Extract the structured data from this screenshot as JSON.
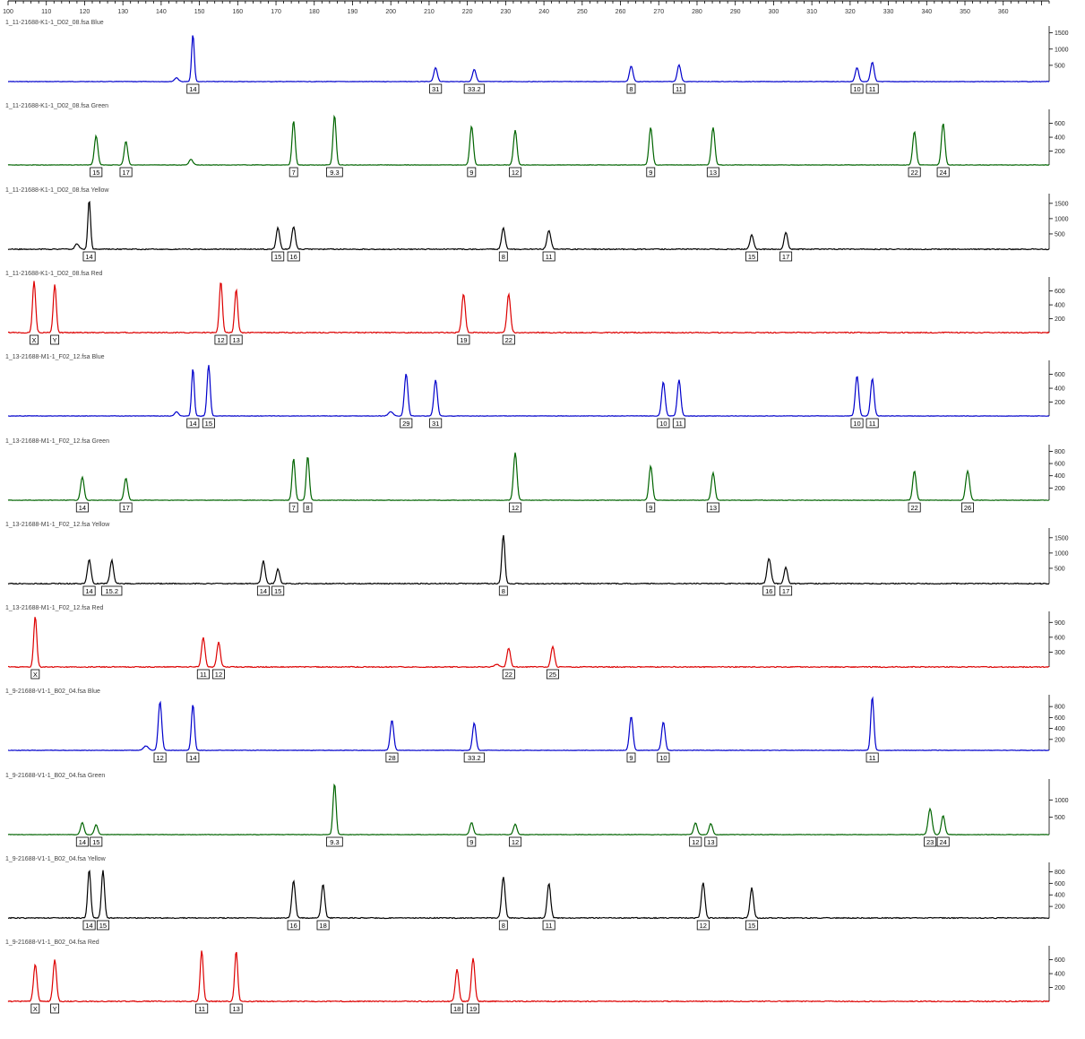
{
  "ruler": {
    "ticks": [
      "100",
      "110",
      "120",
      "130",
      "140",
      "150",
      "160",
      "170",
      "180",
      "190",
      "200",
      "210",
      "220",
      "230",
      "240",
      "250",
      "260",
      "270",
      "280",
      "290",
      "300",
      "310",
      "320",
      "330",
      "340",
      "350",
      "360"
    ],
    "x_min": 100,
    "x_max": 372
  },
  "colors": {
    "blue": "#0000cc",
    "green": "#006400",
    "black": "#000000",
    "red": "#dd0000"
  },
  "panels": [
    {
      "title": "1_11-21688-K1-1_D02_08.fsa Blue",
      "color": "blue",
      "ymax": 1600,
      "yticks": [
        "1500",
        "1000",
        "500"
      ],
      "peaks": [
        {
          "x": 144,
          "h": 120,
          "w": 0.5
        },
        {
          "x": 148.3,
          "h": 1450,
          "w": 0.35
        },
        {
          "x": 211.7,
          "h": 430,
          "w": 0.45
        },
        {
          "x": 221.8,
          "h": 380,
          "w": 0.45
        },
        {
          "x": 262.8,
          "h": 480,
          "w": 0.45
        },
        {
          "x": 275.3,
          "h": 520,
          "w": 0.45
        },
        {
          "x": 321.8,
          "h": 430,
          "w": 0.45
        },
        {
          "x": 325.8,
          "h": 600,
          "w": 0.45
        }
      ],
      "labels": [
        {
          "x": 148.3,
          "t": "14"
        },
        {
          "x": 211.7,
          "t": "31"
        },
        {
          "x": 221.8,
          "t": "33.2"
        },
        {
          "x": 262.8,
          "t": "8"
        },
        {
          "x": 275.3,
          "t": "11"
        },
        {
          "x": 321.8,
          "t": "10"
        },
        {
          "x": 325.8,
          "t": "11"
        }
      ]
    },
    {
      "title": "1_11-21688-K1-1_D02_08.fsa Green",
      "color": "green",
      "ymax": 750,
      "yticks": [
        "600",
        "400",
        "200"
      ],
      "peaks": [
        {
          "x": 123,
          "h": 420,
          "w": 0.45
        },
        {
          "x": 130.8,
          "h": 340,
          "w": 0.45
        },
        {
          "x": 147.8,
          "h": 80,
          "w": 0.5
        },
        {
          "x": 174.6,
          "h": 640,
          "w": 0.4
        },
        {
          "x": 185.3,
          "h": 720,
          "w": 0.4
        },
        {
          "x": 221.1,
          "h": 560,
          "w": 0.45
        },
        {
          "x": 232.5,
          "h": 500,
          "w": 0.45
        },
        {
          "x": 267.9,
          "h": 540,
          "w": 0.45
        },
        {
          "x": 284.2,
          "h": 540,
          "w": 0.45
        },
        {
          "x": 336.8,
          "h": 480,
          "w": 0.45
        },
        {
          "x": 344.3,
          "h": 600,
          "w": 0.45
        }
      ],
      "labels": [
        {
          "x": 123,
          "t": "15"
        },
        {
          "x": 130.8,
          "t": "17"
        },
        {
          "x": 174.6,
          "t": "7"
        },
        {
          "x": 185.3,
          "t": "9.3"
        },
        {
          "x": 221.1,
          "t": "9"
        },
        {
          "x": 232.5,
          "t": "12"
        },
        {
          "x": 267.9,
          "t": "9"
        },
        {
          "x": 284.2,
          "t": "13"
        },
        {
          "x": 336.8,
          "t": "22"
        },
        {
          "x": 344.3,
          "t": "24"
        }
      ]
    },
    {
      "title": "1_11-21688-K1-1_D02_08.fsa Yellow",
      "color": "black",
      "ymax": 1700,
      "yticks": [
        "1500",
        "1000",
        "500"
      ],
      "peaks": [
        {
          "x": 118,
          "h": 180,
          "w": 0.5
        },
        {
          "x": 121.2,
          "h": 1620,
          "w": 0.35
        },
        {
          "x": 170.5,
          "h": 700,
          "w": 0.45
        },
        {
          "x": 174.6,
          "h": 740,
          "w": 0.45
        },
        {
          "x": 229.4,
          "h": 700,
          "w": 0.45
        },
        {
          "x": 241.3,
          "h": 600,
          "w": 0.5
        },
        {
          "x": 294.3,
          "h": 480,
          "w": 0.45
        },
        {
          "x": 303.2,
          "h": 560,
          "w": 0.45
        }
      ],
      "labels": [
        {
          "x": 121.2,
          "t": "14"
        },
        {
          "x": 170.5,
          "t": "15"
        },
        {
          "x": 174.6,
          "t": "16"
        },
        {
          "x": 229.4,
          "t": "8"
        },
        {
          "x": 241.3,
          "t": "11"
        },
        {
          "x": 294.3,
          "t": "15"
        },
        {
          "x": 303.2,
          "t": "17"
        }
      ]
    },
    {
      "title": "1_11-21688-K1-1_D02_08.fsa Red",
      "color": "red",
      "ymax": 750,
      "yticks": [
        "600",
        "400",
        "200"
      ],
      "peaks": [
        {
          "x": 106.8,
          "h": 740,
          "w": 0.4
        },
        {
          "x": 112.2,
          "h": 690,
          "w": 0.4
        },
        {
          "x": 155.6,
          "h": 740,
          "w": 0.4
        },
        {
          "x": 159.6,
          "h": 620,
          "w": 0.4
        },
        {
          "x": 219,
          "h": 560,
          "w": 0.45
        },
        {
          "x": 230.8,
          "h": 560,
          "w": 0.45
        }
      ],
      "labels": [
        {
          "x": 106.8,
          "t": "X"
        },
        {
          "x": 112.2,
          "t": "Y"
        },
        {
          "x": 155.6,
          "t": "12"
        },
        {
          "x": 159.6,
          "t": "13"
        },
        {
          "x": 219,
          "t": "19"
        },
        {
          "x": 230.8,
          "t": "22"
        }
      ]
    },
    {
      "title": "1_13-21688-M1-1_F02_12.fsa Blue",
      "color": "blue",
      "ymax": 750,
      "yticks": [
        "600",
        "400",
        "200"
      ],
      "peaks": [
        {
          "x": 144,
          "h": 60,
          "w": 0.5
        },
        {
          "x": 148.3,
          "h": 690,
          "w": 0.35
        },
        {
          "x": 152.4,
          "h": 740,
          "w": 0.4
        },
        {
          "x": 200,
          "h": 60,
          "w": 0.6
        },
        {
          "x": 204,
          "h": 610,
          "w": 0.45
        },
        {
          "x": 211.7,
          "h": 520,
          "w": 0.45
        },
        {
          "x": 271.2,
          "h": 490,
          "w": 0.45
        },
        {
          "x": 275.3,
          "h": 520,
          "w": 0.45
        },
        {
          "x": 321.8,
          "h": 580,
          "w": 0.45
        },
        {
          "x": 325.8,
          "h": 540,
          "w": 0.45
        }
      ],
      "labels": [
        {
          "x": 148.3,
          "t": "14"
        },
        {
          "x": 152.4,
          "t": "15"
        },
        {
          "x": 204,
          "t": "29"
        },
        {
          "x": 211.7,
          "t": "31"
        },
        {
          "x": 271.2,
          "t": "10"
        },
        {
          "x": 275.3,
          "t": "11"
        },
        {
          "x": 321.8,
          "t": "10"
        },
        {
          "x": 325.8,
          "t": "11"
        }
      ]
    },
    {
      "title": "1_13-21688-M1-1_F02_12.fsa Green",
      "color": "green",
      "ymax": 850,
      "yticks": [
        "800",
        "600",
        "400",
        "200"
      ],
      "peaks": [
        {
          "x": 119.4,
          "h": 380,
          "w": 0.45
        },
        {
          "x": 130.8,
          "h": 360,
          "w": 0.45
        },
        {
          "x": 174.6,
          "h": 680,
          "w": 0.4
        },
        {
          "x": 178.3,
          "h": 720,
          "w": 0.4
        },
        {
          "x": 232.5,
          "h": 780,
          "w": 0.45
        },
        {
          "x": 267.9,
          "h": 560,
          "w": 0.45
        },
        {
          "x": 284.2,
          "h": 450,
          "w": 0.45
        },
        {
          "x": 336.8,
          "h": 480,
          "w": 0.45
        },
        {
          "x": 350.7,
          "h": 480,
          "w": 0.5
        }
      ],
      "labels": [
        {
          "x": 119.4,
          "t": "14"
        },
        {
          "x": 130.8,
          "t": "17"
        },
        {
          "x": 174.6,
          "t": "7"
        },
        {
          "x": 178.3,
          "t": "8"
        },
        {
          "x": 232.5,
          "t": "12"
        },
        {
          "x": 267.9,
          "t": "9"
        },
        {
          "x": 284.2,
          "t": "13"
        },
        {
          "x": 336.8,
          "t": "22"
        },
        {
          "x": 350.7,
          "t": "26"
        }
      ]
    },
    {
      "title": "1_13-21688-M1-1_F02_12.fsa Yellow",
      "color": "black",
      "ymax": 1700,
      "yticks": [
        "1500",
        "1000",
        "500"
      ],
      "peaks": [
        {
          "x": 121.2,
          "h": 800,
          "w": 0.45
        },
        {
          "x": 127.1,
          "h": 760,
          "w": 0.45
        },
        {
          "x": 166.7,
          "h": 740,
          "w": 0.45
        },
        {
          "x": 170.5,
          "h": 470,
          "w": 0.45
        },
        {
          "x": 229.4,
          "h": 1600,
          "w": 0.4
        },
        {
          "x": 298.8,
          "h": 830,
          "w": 0.5
        },
        {
          "x": 303.2,
          "h": 530,
          "w": 0.45
        }
      ],
      "labels": [
        {
          "x": 121.2,
          "t": "14"
        },
        {
          "x": 127.1,
          "t": "15.2"
        },
        {
          "x": 166.7,
          "t": "14"
        },
        {
          "x": 170.5,
          "t": "15"
        },
        {
          "x": 229.4,
          "t": "8"
        },
        {
          "x": 298.8,
          "t": "16"
        },
        {
          "x": 303.2,
          "t": "17"
        }
      ]
    },
    {
      "title": "1_13-21688-M1-1_F02_12.fsa Red",
      "color": "red",
      "ymax": 1050,
      "yticks": [
        "900",
        "600",
        "300"
      ],
      "peaks": [
        {
          "x": 107.1,
          "h": 1030,
          "w": 0.4
        },
        {
          "x": 151,
          "h": 600,
          "w": 0.45
        },
        {
          "x": 155,
          "h": 500,
          "w": 0.45
        },
        {
          "x": 227.6,
          "h": 60,
          "w": 0.6
        },
        {
          "x": 230.8,
          "h": 380,
          "w": 0.45
        },
        {
          "x": 242.3,
          "h": 420,
          "w": 0.45
        }
      ],
      "labels": [
        {
          "x": 107.1,
          "t": "X"
        },
        {
          "x": 151,
          "t": "11"
        },
        {
          "x": 155,
          "t": "12"
        },
        {
          "x": 230.8,
          "t": "22"
        },
        {
          "x": 242.3,
          "t": "25"
        }
      ]
    },
    {
      "title": "1_9-21688-V1-1_B02_04.fsa  Blue",
      "color": "blue",
      "ymax": 950,
      "yticks": [
        "800",
        "600",
        "400",
        "200"
      ],
      "peaks": [
        {
          "x": 136,
          "h": 80,
          "w": 0.6
        },
        {
          "x": 139.7,
          "h": 890,
          "w": 0.45
        },
        {
          "x": 148.3,
          "h": 840,
          "w": 0.4
        },
        {
          "x": 200.3,
          "h": 550,
          "w": 0.45
        },
        {
          "x": 221.8,
          "h": 500,
          "w": 0.45
        },
        {
          "x": 262.8,
          "h": 620,
          "w": 0.45
        },
        {
          "x": 271.2,
          "h": 520,
          "w": 0.45
        },
        {
          "x": 325.8,
          "h": 980,
          "w": 0.4
        }
      ],
      "labels": [
        {
          "x": 139.7,
          "t": "12"
        },
        {
          "x": 148.3,
          "t": "14"
        },
        {
          "x": 200.3,
          "t": "28"
        },
        {
          "x": 221.8,
          "t": "33.2"
        },
        {
          "x": 262.8,
          "t": "9"
        },
        {
          "x": 271.2,
          "t": "10"
        },
        {
          "x": 325.8,
          "t": "11"
        }
      ]
    },
    {
      "title": "1_9-21688-V1-1_B02_04.fsa  Green",
      "color": "green",
      "ymax": 1500,
      "yticks": [
        "1000",
        "500"
      ],
      "peaks": [
        {
          "x": 119.4,
          "h": 350,
          "w": 0.45
        },
        {
          "x": 123,
          "h": 280,
          "w": 0.45
        },
        {
          "x": 185.3,
          "h": 1480,
          "w": 0.4
        },
        {
          "x": 221.1,
          "h": 350,
          "w": 0.45
        },
        {
          "x": 232.5,
          "h": 300,
          "w": 0.45
        },
        {
          "x": 279.6,
          "h": 340,
          "w": 0.45
        },
        {
          "x": 283.6,
          "h": 320,
          "w": 0.45
        },
        {
          "x": 340.9,
          "h": 750,
          "w": 0.5
        },
        {
          "x": 344.3,
          "h": 550,
          "w": 0.45
        }
      ],
      "labels": [
        {
          "x": 119.4,
          "t": "14"
        },
        {
          "x": 123,
          "t": "15"
        },
        {
          "x": 185.3,
          "t": "9.3"
        },
        {
          "x": 221.1,
          "t": "9"
        },
        {
          "x": 232.5,
          "t": "12"
        },
        {
          "x": 279.6,
          "t": "12"
        },
        {
          "x": 283.6,
          "t": "13"
        },
        {
          "x": 340.9,
          "t": "23"
        },
        {
          "x": 344.3,
          "t": "24"
        }
      ]
    },
    {
      "title": "1_9-21688-V1-1_B02_04.fsa  Yellow",
      "color": "black",
      "ymax": 900,
      "yticks": [
        "800",
        "600",
        "400",
        "200"
      ],
      "peaks": [
        {
          "x": 121.2,
          "h": 840,
          "w": 0.4
        },
        {
          "x": 124.8,
          "h": 820,
          "w": 0.4
        },
        {
          "x": 174.6,
          "h": 650,
          "w": 0.45
        },
        {
          "x": 182.3,
          "h": 580,
          "w": 0.45
        },
        {
          "x": 229.4,
          "h": 720,
          "w": 0.45
        },
        {
          "x": 241.3,
          "h": 600,
          "w": 0.45
        },
        {
          "x": 281.6,
          "h": 620,
          "w": 0.45
        },
        {
          "x": 294.3,
          "h": 520,
          "w": 0.45
        }
      ],
      "labels": [
        {
          "x": 121.2,
          "t": "14"
        },
        {
          "x": 124.8,
          "t": "15"
        },
        {
          "x": 174.6,
          "t": "16"
        },
        {
          "x": 182.3,
          "t": "18"
        },
        {
          "x": 229.4,
          "t": "8"
        },
        {
          "x": 241.3,
          "t": "11"
        },
        {
          "x": 281.6,
          "t": "12"
        },
        {
          "x": 294.3,
          "t": "15"
        }
      ]
    },
    {
      "title": "1_9-21688-V1-1_B02_04.fsa  Red",
      "color": "red",
      "ymax": 750,
      "yticks": [
        "600",
        "400",
        "200"
      ],
      "peaks": [
        {
          "x": 107.1,
          "h": 530,
          "w": 0.45
        },
        {
          "x": 112.2,
          "h": 600,
          "w": 0.45
        },
        {
          "x": 150.6,
          "h": 740,
          "w": 0.4
        },
        {
          "x": 159.6,
          "h": 720,
          "w": 0.4
        },
        {
          "x": 217.3,
          "h": 460,
          "w": 0.45
        },
        {
          "x": 221.5,
          "h": 620,
          "w": 0.45
        }
      ],
      "labels": [
        {
          "x": 107.1,
          "t": "X"
        },
        {
          "x": 112.2,
          "t": "Y"
        },
        {
          "x": 150.6,
          "t": "11"
        },
        {
          "x": 159.6,
          "t": "13"
        },
        {
          "x": 217.3,
          "t": "18"
        },
        {
          "x": 221.5,
          "t": "19"
        }
      ]
    }
  ]
}
